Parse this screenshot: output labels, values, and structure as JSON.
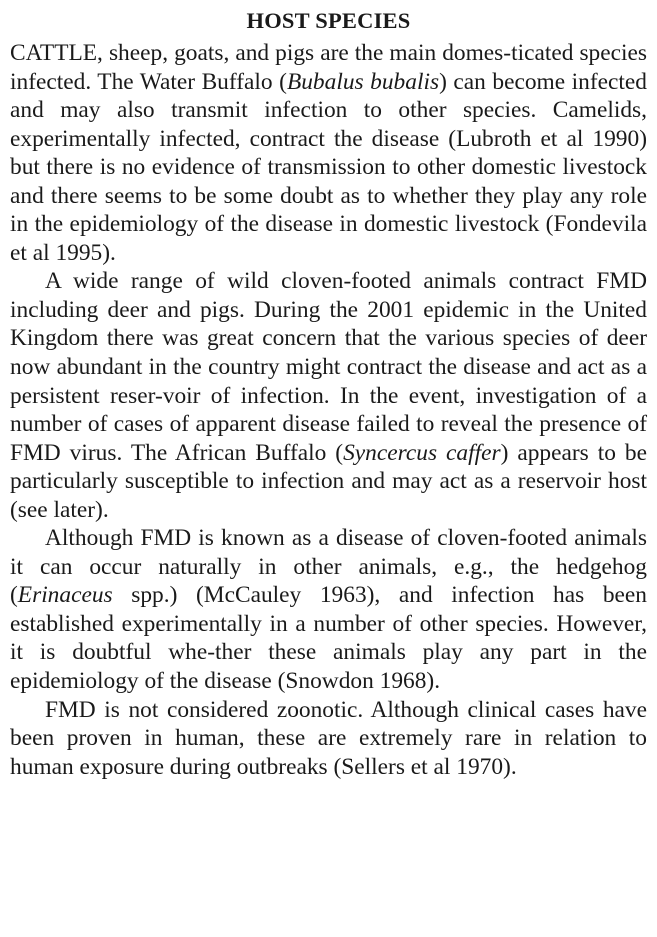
{
  "heading": "HOST SPECIES",
  "paragraphs": [
    {
      "s1": "CATTLE, sheep, goats, and pigs are the main domes-ticated species infected. The Water Buffalo (",
      "i1": "Bubalus bubalis",
      "s2": ") can become infected and may also transmit infection to other species. Camelids, experimentally infected, contract the disease (Lubroth et al 1990) but there is no evidence of transmission to other domestic livestock and there seems to be some doubt as to whether they play any role in the epidemiology of the disease in domestic livestock (Fondevila et al 1995)."
    },
    {
      "s1": "A wide range of wild cloven-footed animals contract FMD including deer and pigs. During the 2001 epidemic in the United Kingdom there was great concern that the various species of deer now abundant in the country might contract the disease and act as a persistent reser-voir of infection. In the event, investigation of a number of cases of apparent disease failed to reveal the presence of FMD virus. The African Buffalo (",
      "i1": "Syncercus caffer",
      "s2": ") appears to be particularly susceptible to infection and may act as a reservoir host (see later)."
    },
    {
      "s1": "Although FMD is known as a disease of cloven-footed animals it can occur naturally in other animals, e.g., the hedgehog (",
      "i1": "Erinaceus",
      "s2": " spp.) (McCauley 1963), and infection has been established experimentally in a number of other species. However, it is doubtful whe-ther these animals play any part in the epidemiology of the disease (Snowdon 1968)."
    },
    {
      "s1": "FMD is not considered zoonotic. Although clinical cases have been proven in human, these are extremely rare in relation to human exposure during outbreaks (Sellers et al 1970)."
    }
  ]
}
